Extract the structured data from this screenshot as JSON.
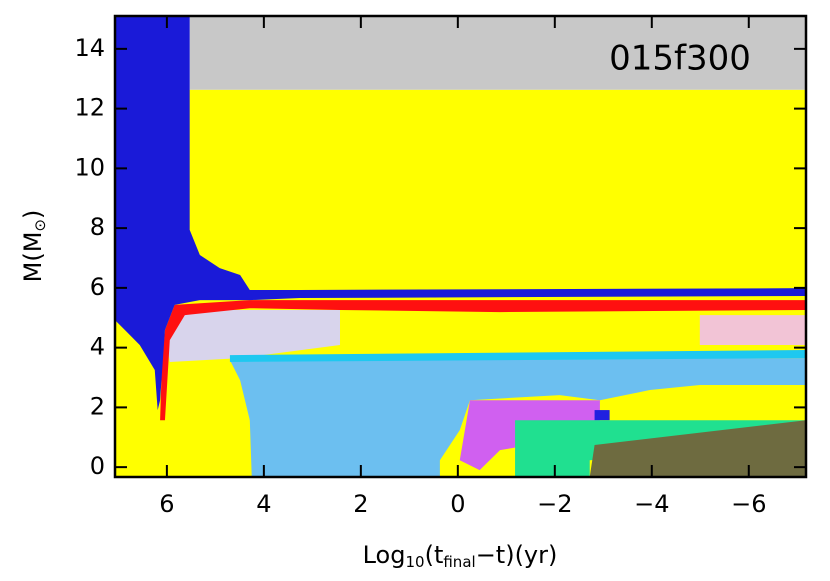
{
  "chart_data": {
    "type": "regions",
    "annotation": "015f300",
    "x_label": [
      "Log",
      "10",
      "(t",
      "final",
      "−t)(yr)"
    ],
    "y_label": [
      "M(M",
      "⊙",
      ")"
    ],
    "xlim": [
      7.07,
      -7.18
    ],
    "ylim": [
      -0.33,
      15.1
    ],
    "xticks": [
      6,
      4,
      2,
      0,
      {
        "value": -2,
        "label": "−2"
      },
      {
        "value": -4,
        "label": "−4"
      },
      {
        "value": -6,
        "label": "−6"
      }
    ],
    "yticks": [
      0,
      2,
      4,
      6,
      8,
      10,
      12,
      14
    ],
    "regions": [
      {
        "color": "#ffff00",
        "points": [
          [
            7.07,
            -0.33
          ],
          [
            -7.18,
            -0.33
          ],
          [
            -7.18,
            12.63
          ],
          [
            7.07,
            12.63
          ]
        ]
      },
      {
        "color": "#c8c8c8",
        "points": [
          [
            5.53,
            12.63
          ],
          [
            -7.18,
            12.63
          ],
          [
            -7.18,
            15.1
          ],
          [
            5.53,
            15.1
          ]
        ]
      },
      {
        "color": "#d8d4ec",
        "points": [
          [
            5.84,
            5.26
          ],
          [
            2.43,
            5.26
          ],
          [
            2.43,
            4.09
          ],
          [
            4.49,
            3.65
          ],
          [
            5.94,
            3.52
          ],
          [
            6.04,
            4.59
          ]
        ]
      },
      {
        "color": "#f2c4d6",
        "points": [
          [
            -4.99,
            5.09
          ],
          [
            -7.18,
            5.09
          ],
          [
            -7.18,
            4.09
          ],
          [
            -4.99,
            4.09
          ]
        ]
      },
      {
        "color": "#6cbff0",
        "points": [
          [
            4.7,
            3.58
          ],
          [
            -7.18,
            3.65
          ],
          [
            -7.18,
            2.75
          ],
          [
            -4.99,
            2.75
          ],
          [
            -3.96,
            2.58
          ],
          [
            -2.93,
            2.24
          ],
          [
            -2.1,
            2.41
          ],
          [
            -0.25,
            2.24
          ],
          [
            -0.04,
            1.24
          ],
          [
            0.37,
            0.23
          ],
          [
            0.37,
            -0.33
          ],
          [
            4.25,
            -0.33
          ],
          [
            4.29,
            1.57
          ],
          [
            4.49,
            2.91
          ]
        ]
      },
      {
        "color": "#1ec8f0",
        "points": [
          [
            4.7,
            3.75
          ],
          [
            -7.18,
            3.92
          ],
          [
            -7.18,
            3.65
          ],
          [
            4.7,
            3.52
          ]
        ]
      },
      {
        "color": "#d060f0",
        "points": [
          [
            -0.25,
            2.24
          ],
          [
            -2.93,
            2.24
          ],
          [
            -2.93,
            1.57
          ],
          [
            -2.1,
            0.9
          ],
          [
            -0.87,
            0.57
          ],
          [
            -0.45,
            -0.1
          ],
          [
            -0.04,
            0.23
          ]
        ]
      },
      {
        "color": "#2020e0",
        "points": [
          [
            -2.82,
            1.91
          ],
          [
            -3.13,
            1.91
          ],
          [
            -3.13,
            1.57
          ],
          [
            -2.82,
            1.57
          ]
        ]
      },
      {
        "color": "#20e090",
        "points": [
          [
            -1.18,
            1.57
          ],
          [
            -7.18,
            1.57
          ],
          [
            -7.18,
            0.74
          ],
          [
            -2.72,
            0.23
          ],
          [
            -2.72,
            -0.33
          ],
          [
            -1.18,
            -0.33
          ]
        ]
      },
      {
        "color": "#6e6b40",
        "points": [
          [
            -2.82,
            0.74
          ],
          [
            -7.18,
            1.57
          ],
          [
            -7.18,
            -0.33
          ],
          [
            -2.72,
            -0.33
          ]
        ]
      },
      {
        "color": "#ff1010",
        "points": [
          [
            6.04,
            4.59
          ],
          [
            5.84,
            5.43
          ],
          [
            4.29,
            5.59
          ],
          [
            -0.87,
            5.59
          ],
          [
            -7.18,
            5.59
          ],
          [
            -7.18,
            5.26
          ],
          [
            -0.87,
            5.19
          ],
          [
            2.43,
            5.26
          ],
          [
            4.29,
            5.32
          ],
          [
            5.63,
            5.09
          ],
          [
            5.94,
            4.25
          ],
          [
            6.04,
            1.57
          ],
          [
            6.14,
            1.57
          ],
          [
            6.1,
            3.58
          ]
        ]
      },
      {
        "color": "#1a1ad8",
        "points": [
          [
            7.07,
            15.1
          ],
          [
            5.53,
            15.1
          ],
          [
            5.53,
            7.94
          ],
          [
            5.32,
            7.1
          ],
          [
            4.91,
            6.66
          ],
          [
            4.49,
            6.43
          ],
          [
            4.29,
            5.93
          ],
          [
            3.26,
            5.93
          ],
          [
            -7.18,
            5.99
          ],
          [
            -7.18,
            5.73
          ],
          [
            3.26,
            5.66
          ],
          [
            4.29,
            5.59
          ],
          [
            5.32,
            5.59
          ],
          [
            5.84,
            5.43
          ],
          [
            6.04,
            4.59
          ],
          [
            6.14,
            2.24
          ],
          [
            6.19,
            1.91
          ],
          [
            6.25,
            3.25
          ],
          [
            6.56,
            4.09
          ],
          [
            7.07,
            4.92
          ]
        ]
      }
    ]
  }
}
